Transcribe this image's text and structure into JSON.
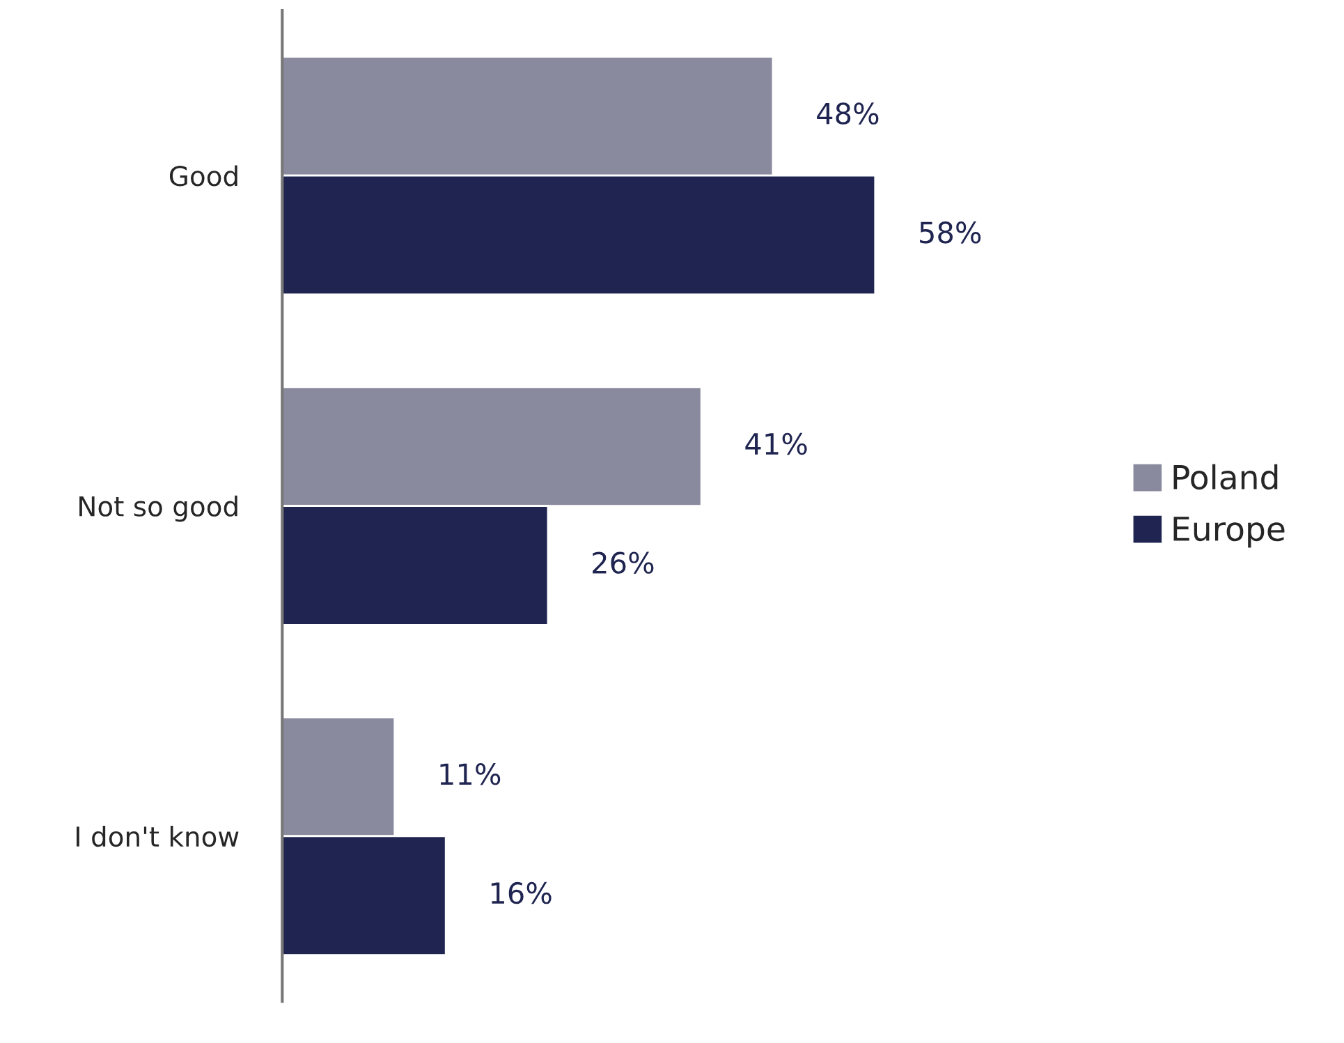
{
  "chart_data": {
    "type": "bar",
    "orientation": "horizontal",
    "categories": [
      "Good",
      "Not so good",
      "I don't know"
    ],
    "series": [
      {
        "name": "Poland",
        "color": "#8a8a9e",
        "values": [
          48,
          41,
          11
        ],
        "value_labels": [
          "48%",
          "41%",
          "11%"
        ]
      },
      {
        "name": "Europe",
        "color": "#1f2550",
        "values": [
          58,
          26,
          16
        ],
        "value_labels": [
          "58%",
          "26%",
          "16%"
        ]
      }
    ],
    "legend": "right",
    "grid": false,
    "tick_labels": "y"
  }
}
